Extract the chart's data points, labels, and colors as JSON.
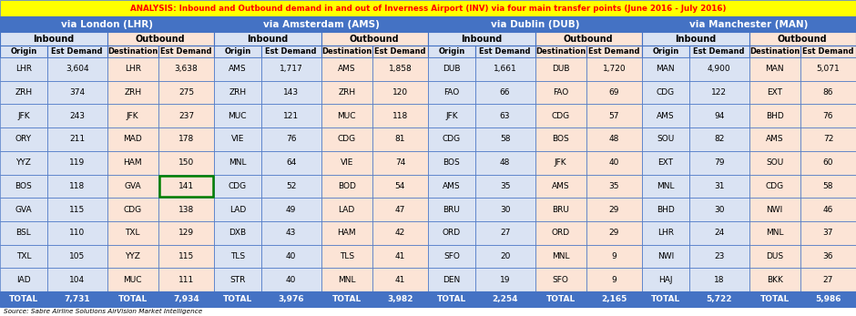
{
  "title": "ANALYSIS: Inbound and Outbound demand in and out of Inverness Airport (INV) via four main transfer points (June 2016 - July 2016)",
  "source": "Source: Sabre Airline Solutions AirVision Market Intelligence",
  "sections": [
    "via London (LHR)",
    "via Amsterdam (AMS)",
    "via Dublin (DUB)",
    "via Manchester (MAN)"
  ],
  "lhr_inbound": [
    [
      "LHR",
      "3,604"
    ],
    [
      "ZRH",
      "374"
    ],
    [
      "JFK",
      "243"
    ],
    [
      "ORY",
      "211"
    ],
    [
      "YYZ",
      "119"
    ],
    [
      "BOS",
      "118"
    ],
    [
      "GVA",
      "115"
    ],
    [
      "BSL",
      "110"
    ],
    [
      "TXL",
      "105"
    ],
    [
      "IAD",
      "104"
    ]
  ],
  "lhr_outbound": [
    [
      "LHR",
      "3,638"
    ],
    [
      "ZRH",
      "275"
    ],
    [
      "JFK",
      "237"
    ],
    [
      "MAD",
      "178"
    ],
    [
      "HAM",
      "150"
    ],
    [
      "GVA",
      "141"
    ],
    [
      "CDG",
      "138"
    ],
    [
      "TXL",
      "129"
    ],
    [
      "YYZ",
      "115"
    ],
    [
      "MUC",
      "111"
    ]
  ],
  "lhr_inbound_total": "7,731",
  "lhr_outbound_total": "7,934",
  "ams_inbound": [
    [
      "AMS",
      "1,717"
    ],
    [
      "ZRH",
      "143"
    ],
    [
      "MUC",
      "121"
    ],
    [
      "VIE",
      "76"
    ],
    [
      "MNL",
      "64"
    ],
    [
      "CDG",
      "52"
    ],
    [
      "LAD",
      "49"
    ],
    [
      "DXB",
      "43"
    ],
    [
      "TLS",
      "40"
    ],
    [
      "STR",
      "40"
    ]
  ],
  "ams_outbound": [
    [
      "AMS",
      "1,858"
    ],
    [
      "ZRH",
      "120"
    ],
    [
      "MUC",
      "118"
    ],
    [
      "CDG",
      "81"
    ],
    [
      "VIE",
      "74"
    ],
    [
      "BOD",
      "54"
    ],
    [
      "LAD",
      "47"
    ],
    [
      "HAM",
      "42"
    ],
    [
      "TLS",
      "41"
    ],
    [
      "MNL",
      "41"
    ]
  ],
  "ams_inbound_total": "3,976",
  "ams_outbound_total": "3,982",
  "dub_inbound": [
    [
      "DUB",
      "1,661"
    ],
    [
      "FAO",
      "66"
    ],
    [
      "JFK",
      "63"
    ],
    [
      "CDG",
      "58"
    ],
    [
      "BOS",
      "48"
    ],
    [
      "AMS",
      "35"
    ],
    [
      "BRU",
      "30"
    ],
    [
      "ORD",
      "27"
    ],
    [
      "SFO",
      "20"
    ],
    [
      "DEN",
      "19"
    ]
  ],
  "dub_outbound": [
    [
      "DUB",
      "1,720"
    ],
    [
      "FAO",
      "69"
    ],
    [
      "CDG",
      "57"
    ],
    [
      "BOS",
      "48"
    ],
    [
      "JFK",
      "40"
    ],
    [
      "AMS",
      "35"
    ],
    [
      "BRU",
      "29"
    ],
    [
      "ORD",
      "29"
    ],
    [
      "MNL",
      "9"
    ],
    [
      "SFO",
      "9"
    ]
  ],
  "dub_inbound_total": "2,254",
  "dub_outbound_total": "2,165",
  "man_inbound": [
    [
      "MAN",
      "4,900"
    ],
    [
      "CDG",
      "122"
    ],
    [
      "AMS",
      "94"
    ],
    [
      "SOU",
      "82"
    ],
    [
      "EXT",
      "79"
    ],
    [
      "MNL",
      "31"
    ],
    [
      "BHD",
      "30"
    ],
    [
      "LHR",
      "24"
    ],
    [
      "NWI",
      "23"
    ],
    [
      "HAJ",
      "18"
    ]
  ],
  "man_outbound": [
    [
      "MAN",
      "5,071"
    ],
    [
      "EXT",
      "86"
    ],
    [
      "BHD",
      "76"
    ],
    [
      "AMS",
      "72"
    ],
    [
      "SOU",
      "60"
    ],
    [
      "CDG",
      "58"
    ],
    [
      "NWI",
      "46"
    ],
    [
      "MNL",
      "37"
    ],
    [
      "DUS",
      "36"
    ],
    [
      "BKK",
      "27"
    ]
  ],
  "man_inbound_total": "5,722",
  "man_outbound_total": "5,986",
  "title_bg": "#FFFF00",
  "title_color": "#FF0000",
  "header1_bg": "#4472C4",
  "header1_color": "#FFFFFF",
  "inbound_bg": "#DAE3F3",
  "outbound_bg": "#FCE4D6",
  "total_bg": "#4472C4",
  "total_color": "#FFFFFF",
  "border_color": "#4472C4",
  "white_bg": "#FFFFFF",
  "highlight_cell_border": "#008000",
  "source_text_color": "#404040"
}
